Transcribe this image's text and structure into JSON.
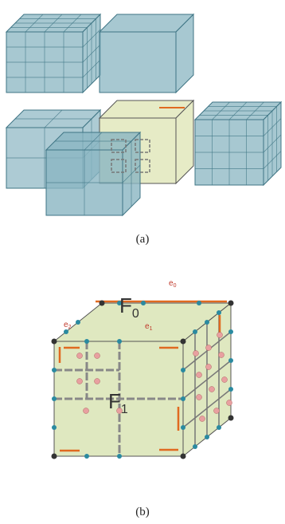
{
  "captions": {
    "a": "(a)",
    "b": "(b)"
  },
  "edges": [
    {
      "main": "e",
      "sub": "0"
    },
    {
      "main": "e",
      "sub": "1"
    },
    {
      "main": "e",
      "sub": "2"
    }
  ],
  "faces": [
    {
      "main": "F",
      "sub": "0"
    },
    {
      "main": "F",
      "sub": "1"
    }
  ]
}
